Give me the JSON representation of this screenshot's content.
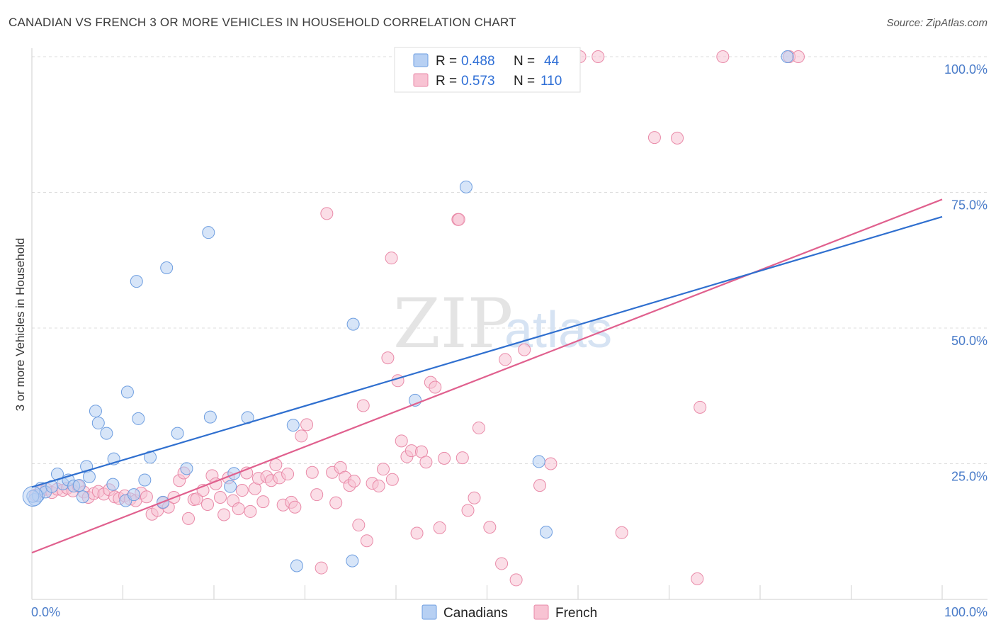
{
  "title": "CANADIAN VS FRENCH 3 OR MORE VEHICLES IN HOUSEHOLD CORRELATION CHART",
  "source": "Source: ZipAtlas.com",
  "watermark": {
    "zip": "ZIP",
    "atlas": "atlas"
  },
  "colors": {
    "canadian_fill": "#b7d0f3",
    "canadian_stroke": "#6e9ee0",
    "canadian_line": "#2f6fcf",
    "french_fill": "#f8c3d3",
    "french_stroke": "#e98aa8",
    "french_line": "#e0608e"
  },
  "legend": {
    "rows": [
      {
        "r_label": "R =",
        "r_value": "0.488",
        "n_label": "N =",
        "n_value": "44"
      },
      {
        "r_label": "R =",
        "r_value": "0.573",
        "n_label": "N =",
        "n_value": "110"
      }
    ]
  },
  "bottom_legend": [
    "Canadians",
    "French"
  ],
  "chart_data": {
    "type": "scatter",
    "xlabel": "",
    "ylabel": "3 or more Vehicles in Household",
    "xlim": [
      0,
      100
    ],
    "ylim": [
      0,
      100
    ],
    "x_tick_labels": [
      "0.0%",
      "100.0%"
    ],
    "y_tick_labels": [
      "25.0%",
      "50.0%",
      "75.0%",
      "100.0%"
    ],
    "y_ticks": [
      25,
      50,
      75,
      100
    ],
    "grid": true,
    "legend_position": "top-center",
    "series": [
      {
        "name": "Canadians",
        "trend": {
          "x": [
            0,
            100
          ],
          "y": [
            20.7,
            70.5
          ]
        },
        "points": [
          [
            0.3,
            18.4
          ],
          [
            0.7,
            19.1
          ],
          [
            1.0,
            20.5
          ],
          [
            1.5,
            19.8
          ],
          [
            2.2,
            20.8
          ],
          [
            2.8,
            23.1
          ],
          [
            3.4,
            21.3
          ],
          [
            4.0,
            22.0
          ],
          [
            4.6,
            20.9
          ],
          [
            5.2,
            21.0
          ],
          [
            5.6,
            18.9
          ],
          [
            6.0,
            24.5
          ],
          [
            6.3,
            22.6
          ],
          [
            7.0,
            34.7
          ],
          [
            7.3,
            32.5
          ],
          [
            8.2,
            30.6
          ],
          [
            8.9,
            21.2
          ],
          [
            9.0,
            25.9
          ],
          [
            10.3,
            18.2
          ],
          [
            11.2,
            19.3
          ],
          [
            10.5,
            38.2
          ],
          [
            11.7,
            33.3
          ],
          [
            11.5,
            58.6
          ],
          [
            12.4,
            22.0
          ],
          [
            13.0,
            26.2
          ],
          [
            14.4,
            17.9
          ],
          [
            14.8,
            61.1
          ],
          [
            16.0,
            30.6
          ],
          [
            17.0,
            24.1
          ],
          [
            19.4,
            67.6
          ],
          [
            19.6,
            33.6
          ],
          [
            21.8,
            20.8
          ],
          [
            22.2,
            23.2
          ],
          [
            23.7,
            33.5
          ],
          [
            28.7,
            32.1
          ],
          [
            29.1,
            6.2
          ],
          [
            35.2,
            7.1
          ],
          [
            35.3,
            50.7
          ],
          [
            42.1,
            36.7
          ],
          [
            47.7,
            76.0
          ],
          [
            55.7,
            25.4
          ],
          [
            56.5,
            12.4
          ],
          [
            83.0,
            100.0
          ],
          [
            0.1,
            19.0
          ]
        ]
      },
      {
        "name": "French",
        "trend": {
          "x": [
            0,
            100
          ],
          "y": [
            8.6,
            73.7
          ]
        },
        "points": [
          [
            0.4,
            19.2
          ],
          [
            1.0,
            19.9
          ],
          [
            1.6,
            20.3
          ],
          [
            2.2,
            19.7
          ],
          [
            2.8,
            20.3
          ],
          [
            3.4,
            20.1
          ],
          [
            3.9,
            20.5
          ],
          [
            4.5,
            20.0
          ],
          [
            5.1,
            20.9
          ],
          [
            5.7,
            19.8
          ],
          [
            6.2,
            18.8
          ],
          [
            6.8,
            19.5
          ],
          [
            7.3,
            19.9
          ],
          [
            7.9,
            19.4
          ],
          [
            8.5,
            20.2
          ],
          [
            9.1,
            18.9
          ],
          [
            9.6,
            18.6
          ],
          [
            10.2,
            19.1
          ],
          [
            10.8,
            18.5
          ],
          [
            11.4,
            18.2
          ],
          [
            12.0,
            19.6
          ],
          [
            12.6,
            18.9
          ],
          [
            13.2,
            15.7
          ],
          [
            13.8,
            16.4
          ],
          [
            14.4,
            17.8
          ],
          [
            15.0,
            17.0
          ],
          [
            15.6,
            18.8
          ],
          [
            16.2,
            21.9
          ],
          [
            16.7,
            23.3
          ],
          [
            17.2,
            14.9
          ],
          [
            17.8,
            18.4
          ],
          [
            18.1,
            18.5
          ],
          [
            18.8,
            20.1
          ],
          [
            19.3,
            17.5
          ],
          [
            19.8,
            22.8
          ],
          [
            20.2,
            21.3
          ],
          [
            20.7,
            18.8
          ],
          [
            21.1,
            15.6
          ],
          [
            21.6,
            22.4
          ],
          [
            22.1,
            18.2
          ],
          [
            22.7,
            16.7
          ],
          [
            23.1,
            20.1
          ],
          [
            23.6,
            23.3
          ],
          [
            24.0,
            16.2
          ],
          [
            24.5,
            20.4
          ],
          [
            24.9,
            22.3
          ],
          [
            25.4,
            18.0
          ],
          [
            25.8,
            22.6
          ],
          [
            26.3,
            21.9
          ],
          [
            26.8,
            24.8
          ],
          [
            27.2,
            22.4
          ],
          [
            27.6,
            17.4
          ],
          [
            28.1,
            23.1
          ],
          [
            28.5,
            17.9
          ],
          [
            28.9,
            17.0
          ],
          [
            29.6,
            30.1
          ],
          [
            30.2,
            32.2
          ],
          [
            30.8,
            23.4
          ],
          [
            31.3,
            19.3
          ],
          [
            31.8,
            5.8
          ],
          [
            32.4,
            71.1
          ],
          [
            33.0,
            23.4
          ],
          [
            33.4,
            17.8
          ],
          [
            33.9,
            24.3
          ],
          [
            34.4,
            22.5
          ],
          [
            34.9,
            21.0
          ],
          [
            35.4,
            21.8
          ],
          [
            35.9,
            13.7
          ],
          [
            36.4,
            35.7
          ],
          [
            36.8,
            10.8
          ],
          [
            37.4,
            21.4
          ],
          [
            38.1,
            20.9
          ],
          [
            38.6,
            24.0
          ],
          [
            39.1,
            44.5
          ],
          [
            39.6,
            22.1
          ],
          [
            40.2,
            40.3
          ],
          [
            40.6,
            29.2
          ],
          [
            41.2,
            26.3
          ],
          [
            41.7,
            27.4
          ],
          [
            42.3,
            12.2
          ],
          [
            42.8,
            27.2
          ],
          [
            43.3,
            25.3
          ],
          [
            43.8,
            40.0
          ],
          [
            44.3,
            39.1
          ],
          [
            44.8,
            13.2
          ],
          [
            45.3,
            26.0
          ],
          [
            46.8,
            70.0
          ],
          [
            46.9,
            70.0
          ],
          [
            47.3,
            26.1
          ],
          [
            47.9,
            16.4
          ],
          [
            48.6,
            18.7
          ],
          [
            49.1,
            31.6
          ],
          [
            50.3,
            13.3
          ],
          [
            51.6,
            6.6
          ],
          [
            53.2,
            3.6
          ],
          [
            54.1,
            46.0
          ],
          [
            55.8,
            21.0
          ],
          [
            60.2,
            100.0
          ],
          [
            62.2,
            100.0
          ],
          [
            64.8,
            12.3
          ],
          [
            68.4,
            85.1
          ],
          [
            70.9,
            85.0
          ],
          [
            73.1,
            3.8
          ],
          [
            73.4,
            35.4
          ],
          [
            75.9,
            100.0
          ],
          [
            83.2,
            100.0
          ],
          [
            84.2,
            100.0
          ],
          [
            52.0,
            44.2
          ],
          [
            39.5,
            62.9
          ],
          [
            57.0,
            25.0
          ]
        ]
      }
    ]
  }
}
